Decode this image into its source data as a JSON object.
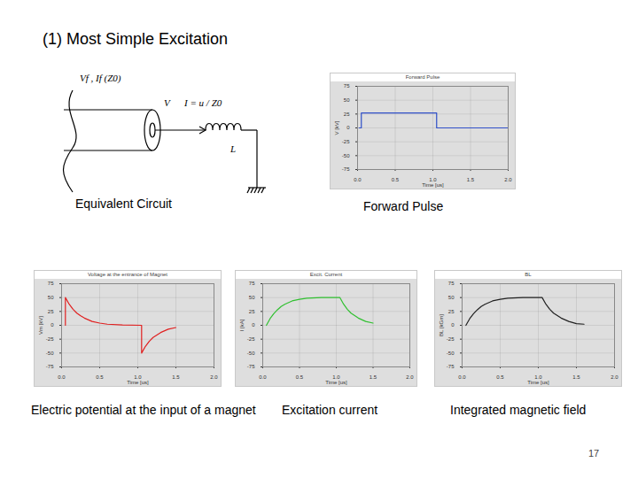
{
  "slide": {
    "title": "(1) Most Simple Excitation",
    "circuit": {
      "caption": "Equivalent Circuit",
      "source_label": "Vf , If (Z0)",
      "voltage_label": "V",
      "current_label": "I = u / Z0",
      "inductor_label": "L"
    },
    "page_number": "17"
  },
  "chart_data": [
    {
      "type": "line",
      "title": "Forward Pulse",
      "caption": "Forward Pulse",
      "x_label": "Time [us]",
      "y_label": "V [kV]",
      "x": [
        0.02,
        0.05,
        0.05,
        1.05,
        1.05,
        2.0
      ],
      "values": [
        0,
        0,
        27,
        27,
        0,
        0
      ],
      "color": "#3050c8",
      "xlim": [
        0,
        2.0
      ],
      "ylim": [
        -75,
        75
      ],
      "xticks": [
        {
          "value": 0,
          "label": "0.0"
        },
        {
          "value": 0.5,
          "label": "0.5"
        },
        {
          "value": 1,
          "label": "1.0"
        },
        {
          "value": 1.5,
          "label": "1.5"
        },
        {
          "value": 2,
          "label": "2.0"
        }
      ],
      "yticks": [
        -75,
        -50,
        -25,
        0,
        25,
        50,
        75
      ],
      "grid": true
    },
    {
      "type": "line",
      "title": "Voltage at the entrance of Magnet",
      "caption": "Electric potential at the input of a magnet",
      "x_label": "Time [us]",
      "y_label": "Vm [kV]",
      "x": [
        0.05,
        0.05,
        0.1,
        0.15,
        0.2,
        0.25,
        0.3,
        0.4,
        0.5,
        0.6,
        0.8,
        1.05,
        1.05,
        1.1,
        1.15,
        1.2,
        1.3,
        1.4,
        1.5
      ],
      "values": [
        0,
        50,
        38,
        29,
        22,
        17,
        13,
        7,
        4,
        2,
        0.5,
        0,
        -50,
        -38,
        -29,
        -22,
        -13,
        -7,
        -4
      ],
      "color": "#e02020",
      "xlim": [
        0,
        2.0
      ],
      "ylim": [
        -75,
        75
      ],
      "xticks": [
        {
          "value": 0,
          "label": "0.0"
        },
        {
          "value": 0.5,
          "label": "0.5"
        },
        {
          "value": 1,
          "label": "1.0"
        },
        {
          "value": 1.5,
          "label": "1.5"
        },
        {
          "value": 2,
          "label": "2.0"
        }
      ],
      "yticks": [
        -75,
        -50,
        -25,
        0,
        25,
        50,
        75
      ],
      "grid": true
    },
    {
      "type": "line",
      "title": "Excit. Current",
      "caption": "Excitation current",
      "x_label": "Time [us]",
      "y_label": "I [kA]",
      "x": [
        0.05,
        0.1,
        0.15,
        0.2,
        0.25,
        0.3,
        0.4,
        0.5,
        0.6,
        0.8,
        1.05,
        1.1,
        1.15,
        1.2,
        1.3,
        1.4,
        1.5
      ],
      "values": [
        0,
        12,
        21,
        28,
        34,
        38,
        44,
        47,
        49,
        50,
        50,
        38,
        29,
        22,
        13,
        7,
        4
      ],
      "color": "#30c030",
      "xlim": [
        0,
        2.0
      ],
      "ylim": [
        -75,
        75
      ],
      "xticks": [
        {
          "value": 0,
          "label": "0.0"
        },
        {
          "value": 0.5,
          "label": "0.5"
        },
        {
          "value": 1,
          "label": "1.0"
        },
        {
          "value": 1.5,
          "label": "1.5"
        },
        {
          "value": 2,
          "label": "2.0"
        }
      ],
      "yticks": [
        -75,
        -50,
        -25,
        0,
        25,
        50,
        75
      ],
      "grid": true
    },
    {
      "type": "line",
      "title": "BL",
      "caption": "Integrated magnetic field",
      "x_label": "Time [us]",
      "y_label": "BL [kGm]",
      "x": [
        0.05,
        0.1,
        0.15,
        0.2,
        0.25,
        0.3,
        0.4,
        0.5,
        0.6,
        0.8,
        1.05,
        1.1,
        1.15,
        1.2,
        1.3,
        1.4,
        1.5,
        1.6
      ],
      "values": [
        0,
        12,
        21,
        28,
        34,
        38,
        44,
        47,
        49,
        50,
        50,
        38,
        29,
        22,
        13,
        7,
        3,
        2
      ],
      "color": "#202020",
      "xlim": [
        0,
        2.0
      ],
      "ylim": [
        -75,
        75
      ],
      "xticks": [
        {
          "value": 0,
          "label": "0.0"
        },
        {
          "value": 0.5,
          "label": "0.5"
        },
        {
          "value": 1,
          "label": "1.0"
        },
        {
          "value": 1.5,
          "label": "1.5"
        },
        {
          "value": 2,
          "label": "2.0"
        }
      ],
      "yticks": [
        -75,
        -50,
        -25,
        0,
        25,
        50,
        75
      ],
      "grid": true
    }
  ]
}
